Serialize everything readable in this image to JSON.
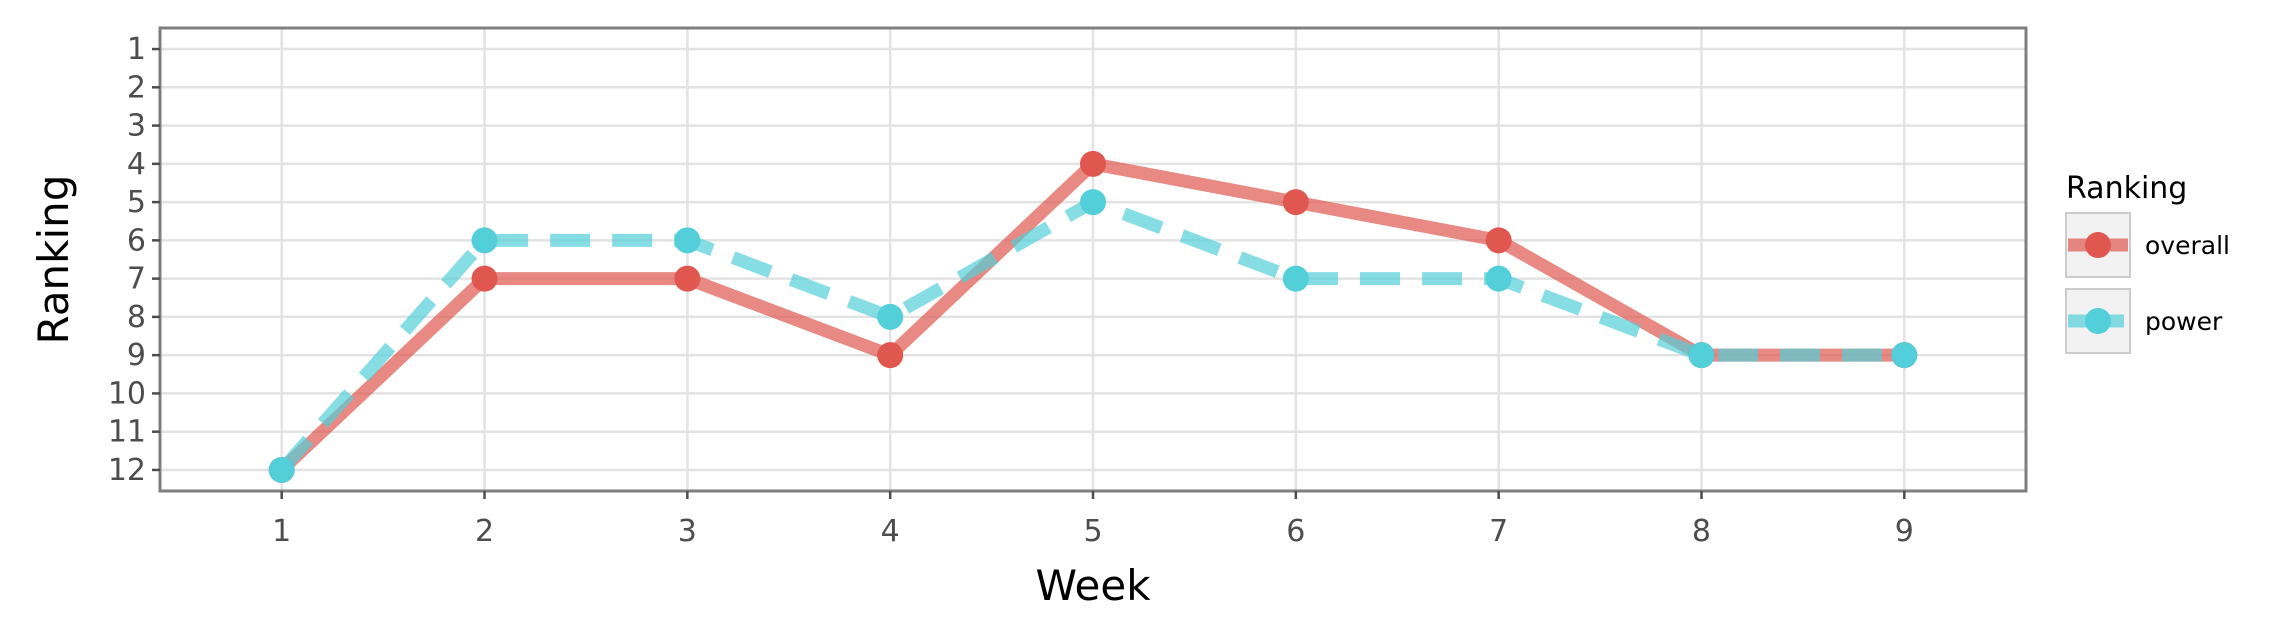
{
  "chart_data": {
    "type": "line",
    "title": "",
    "xlabel": "Week",
    "ylabel": "Ranking",
    "x": [
      1,
      2,
      3,
      4,
      5,
      6,
      7,
      8,
      9
    ],
    "x_ticks": [
      "1",
      "2",
      "3",
      "4",
      "5",
      "6",
      "7",
      "8",
      "9"
    ],
    "y_ticks": [
      "1",
      "2",
      "3",
      "4",
      "5",
      "6",
      "7",
      "8",
      "9",
      "10",
      "11",
      "12"
    ],
    "xlim": [
      0.4,
      9.6
    ],
    "ylim": [
      12.55,
      0.45
    ],
    "y_reversed": true,
    "grid": true,
    "legend": {
      "title": "Ranking",
      "position": "right"
    },
    "series": [
      {
        "name": "overall",
        "values": [
          12,
          7,
          7,
          9,
          4,
          5,
          6,
          9,
          9
        ],
        "color": "#e0574f",
        "line_style": "solid"
      },
      {
        "name": "power",
        "values": [
          12,
          6,
          6,
          8,
          5,
          7,
          7,
          9,
          9
        ],
        "color": "#52cfd9",
        "line_style": "dashed"
      }
    ]
  }
}
